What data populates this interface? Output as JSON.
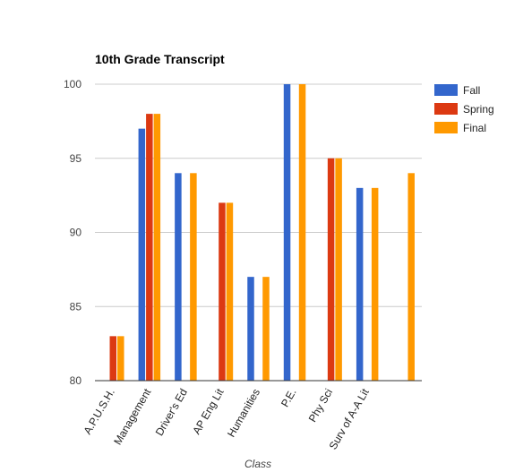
{
  "chart_data": {
    "type": "bar",
    "title": "10th Grade Transcript",
    "xlabel": "Class",
    "ylabel": "",
    "ylim": [
      80,
      100
    ],
    "yticks": [
      80,
      85,
      90,
      95,
      100
    ],
    "grid": true,
    "legend_position": "right",
    "categories": [
      "A.P.U.S.H.",
      "Management",
      "Driver's Ed",
      "AP Eng Lit",
      "Humanities",
      "P.E.",
      "Phy Sci",
      "Surv of A-A Lit",
      ""
    ],
    "series": [
      {
        "name": "Fall",
        "color": "#3366cc",
        "values": [
          null,
          97,
          94,
          null,
          87,
          100,
          null,
          93,
          null
        ]
      },
      {
        "name": "Spring",
        "color": "#dc3912",
        "values": [
          83,
          98,
          null,
          92,
          null,
          null,
          95,
          null,
          null
        ]
      },
      {
        "name": "Final",
        "color": "#ff9900",
        "values": [
          83,
          98,
          94,
          92,
          87,
          100,
          95,
          93,
          94
        ]
      }
    ]
  }
}
